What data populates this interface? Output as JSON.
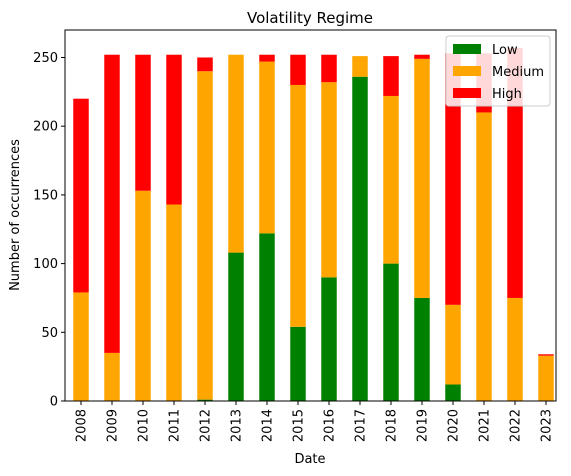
{
  "chart_data": {
    "type": "bar",
    "stacked": true,
    "title": "Volatility Regime",
    "xlabel": "Date",
    "ylabel": "Number of occurrences",
    "ylim": [
      0,
      270
    ],
    "yticks": [
      0,
      50,
      100,
      150,
      200,
      250
    ],
    "grid": false,
    "legend_position": "top-right",
    "categories": [
      "2008",
      "2009",
      "2010",
      "2011",
      "2012",
      "2013",
      "2014",
      "2015",
      "2016",
      "2017",
      "2018",
      "2019",
      "2020",
      "2021",
      "2022",
      "2023"
    ],
    "series": [
      {
        "name": "Low",
        "color": "#008000",
        "values": [
          0,
          0,
          0,
          0,
          1,
          108,
          122,
          54,
          90,
          236,
          100,
          75,
          12,
          0,
          0,
          0
        ]
      },
      {
        "name": "Medium",
        "color": "#ffa500",
        "values": [
          79,
          35,
          153,
          143,
          239,
          144,
          125,
          176,
          142,
          15,
          122,
          174,
          58,
          210,
          75,
          33
        ]
      },
      {
        "name": "High",
        "color": "#ff0000",
        "values": [
          141,
          217,
          99,
          109,
          10,
          0,
          5,
          22,
          20,
          0,
          29,
          3,
          183,
          43,
          182,
          1
        ]
      }
    ]
  }
}
